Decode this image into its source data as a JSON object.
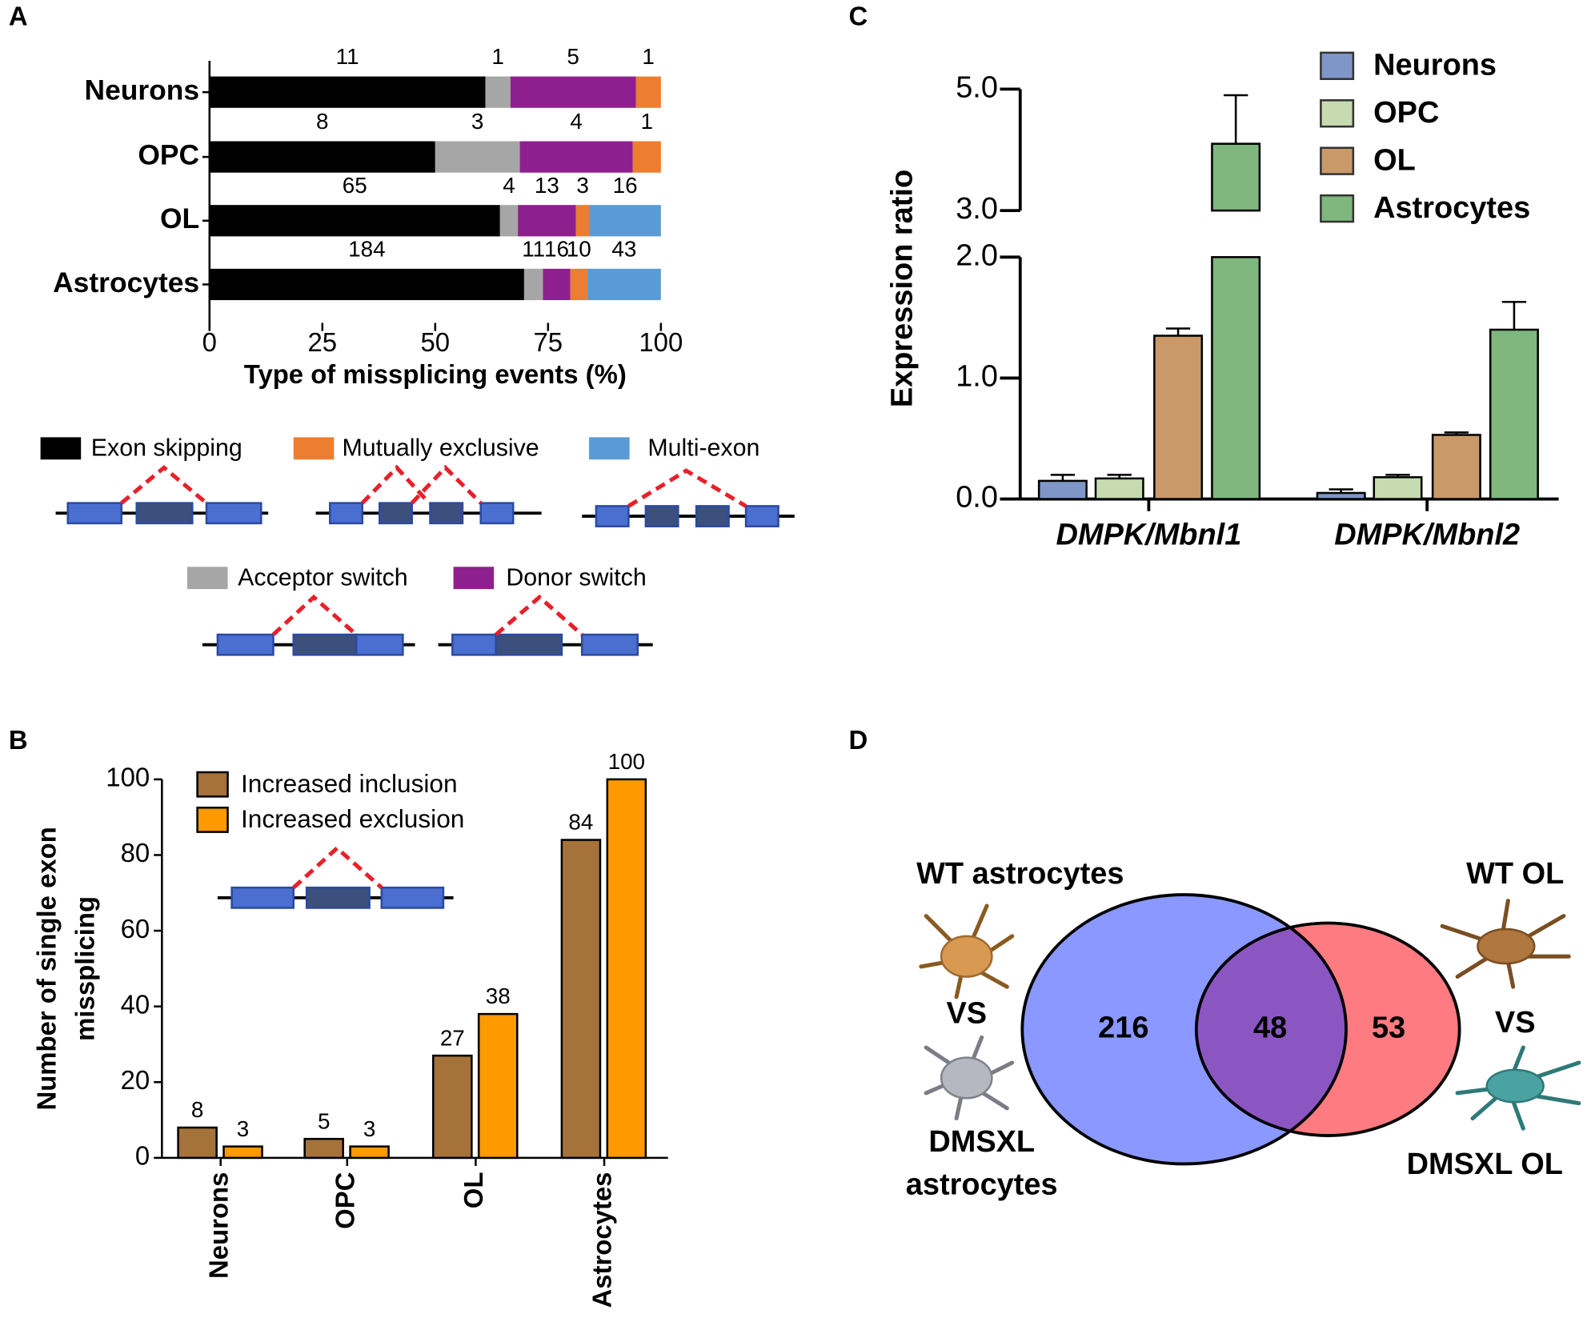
{
  "chart_data": [
    {
      "panel": "A",
      "type": "bar",
      "orientation": "horizontal",
      "stacking": "percent",
      "categories": [
        "Neurons",
        "OPC",
        "OL",
        "Astrocytes"
      ],
      "series": [
        {
          "name": "Exon skipping",
          "color": "#000000",
          "values": [
            11,
            8,
            65,
            184
          ]
        },
        {
          "name": "Acceptor switch",
          "color": "#a6a6a6",
          "values": [
            1,
            3,
            4,
            11
          ]
        },
        {
          "name": "Donor switch",
          "color": "#8e1f8e",
          "values": [
            5,
            4,
            13,
            16
          ]
        },
        {
          "name": "Mutually exclusive",
          "color": "#ed7d31",
          "values": [
            1,
            1,
            3,
            10
          ]
        },
        {
          "name": "Multi-exon",
          "color": "#5b9bd5",
          "values": [
            null,
            null,
            16,
            43
          ]
        }
      ],
      "xlabel": "Type of missplicing events (%)",
      "xlim": [
        0,
        100
      ],
      "xticks": [
        0,
        25,
        50,
        75,
        100
      ]
    },
    {
      "panel": "B",
      "type": "bar",
      "orientation": "vertical",
      "categories": [
        "Neurons",
        "OPC",
        "OL",
        "Astrocytes"
      ],
      "series": [
        {
          "name": "Increased inclusion",
          "color": "#a5723a",
          "values": [
            8,
            5,
            27,
            84
          ]
        },
        {
          "name": "Increased exclusion",
          "color": "#ff9900",
          "values": [
            3,
            3,
            38,
            100
          ]
        }
      ],
      "ylabel": [
        "Number of single exon",
        "missplicing"
      ],
      "ylim": [
        0,
        100
      ],
      "yticks": [
        0,
        20,
        40,
        60,
        80,
        100
      ]
    },
    {
      "panel": "C",
      "type": "bar",
      "orientation": "vertical",
      "categories": [
        "DMPK/Mbnl1",
        "DMPK/Mbnl2"
      ],
      "series": [
        {
          "name": "Neurons",
          "color": "#7f96c8",
          "values": [
            0.15,
            0.05
          ],
          "errors": [
            0.05,
            0.03
          ]
        },
        {
          "name": "OPC",
          "color": "#c6dbb0",
          "values": [
            0.17,
            0.18
          ],
          "errors": [
            0.03,
            0.02
          ]
        },
        {
          "name": "OL",
          "color": "#c9996a",
          "values": [
            1.35,
            0.53
          ],
          "errors": [
            0.06,
            0.02
          ]
        },
        {
          "name": "Astrocytes",
          "color": "#7fb77e",
          "values": [
            4.1,
            1.4
          ],
          "errors": [
            0.8,
            0.23
          ]
        }
      ],
      "ylabel": "Expression ratio",
      "ylim": [
        0,
        5
      ],
      "axis_break": [
        2,
        3
      ],
      "yticks": [
        {
          "value": 0,
          "label": "0.0"
        },
        {
          "value": 1,
          "label": "1.0"
        },
        {
          "value": 2,
          "label": "2.0"
        },
        {
          "value": 3,
          "label": "3.0"
        },
        {
          "value": 5,
          "label": "5.0"
        }
      ]
    },
    {
      "panel": "D",
      "type": "venn",
      "sets": [
        {
          "top_label": "WT astrocytes",
          "vs_label": "VS",
          "bottom_label": [
            "DMSXL",
            "astrocytes"
          ],
          "color": "#8a98ff",
          "only": 216
        },
        {
          "top_label": "WT OL",
          "vs_label": "VS",
          "bottom_label": [
            "DMSXL OL"
          ],
          "color": "#ff7b82",
          "only": 53
        }
      ],
      "overlap": 48,
      "overlap_color": "#8b56c2"
    }
  ]
}
